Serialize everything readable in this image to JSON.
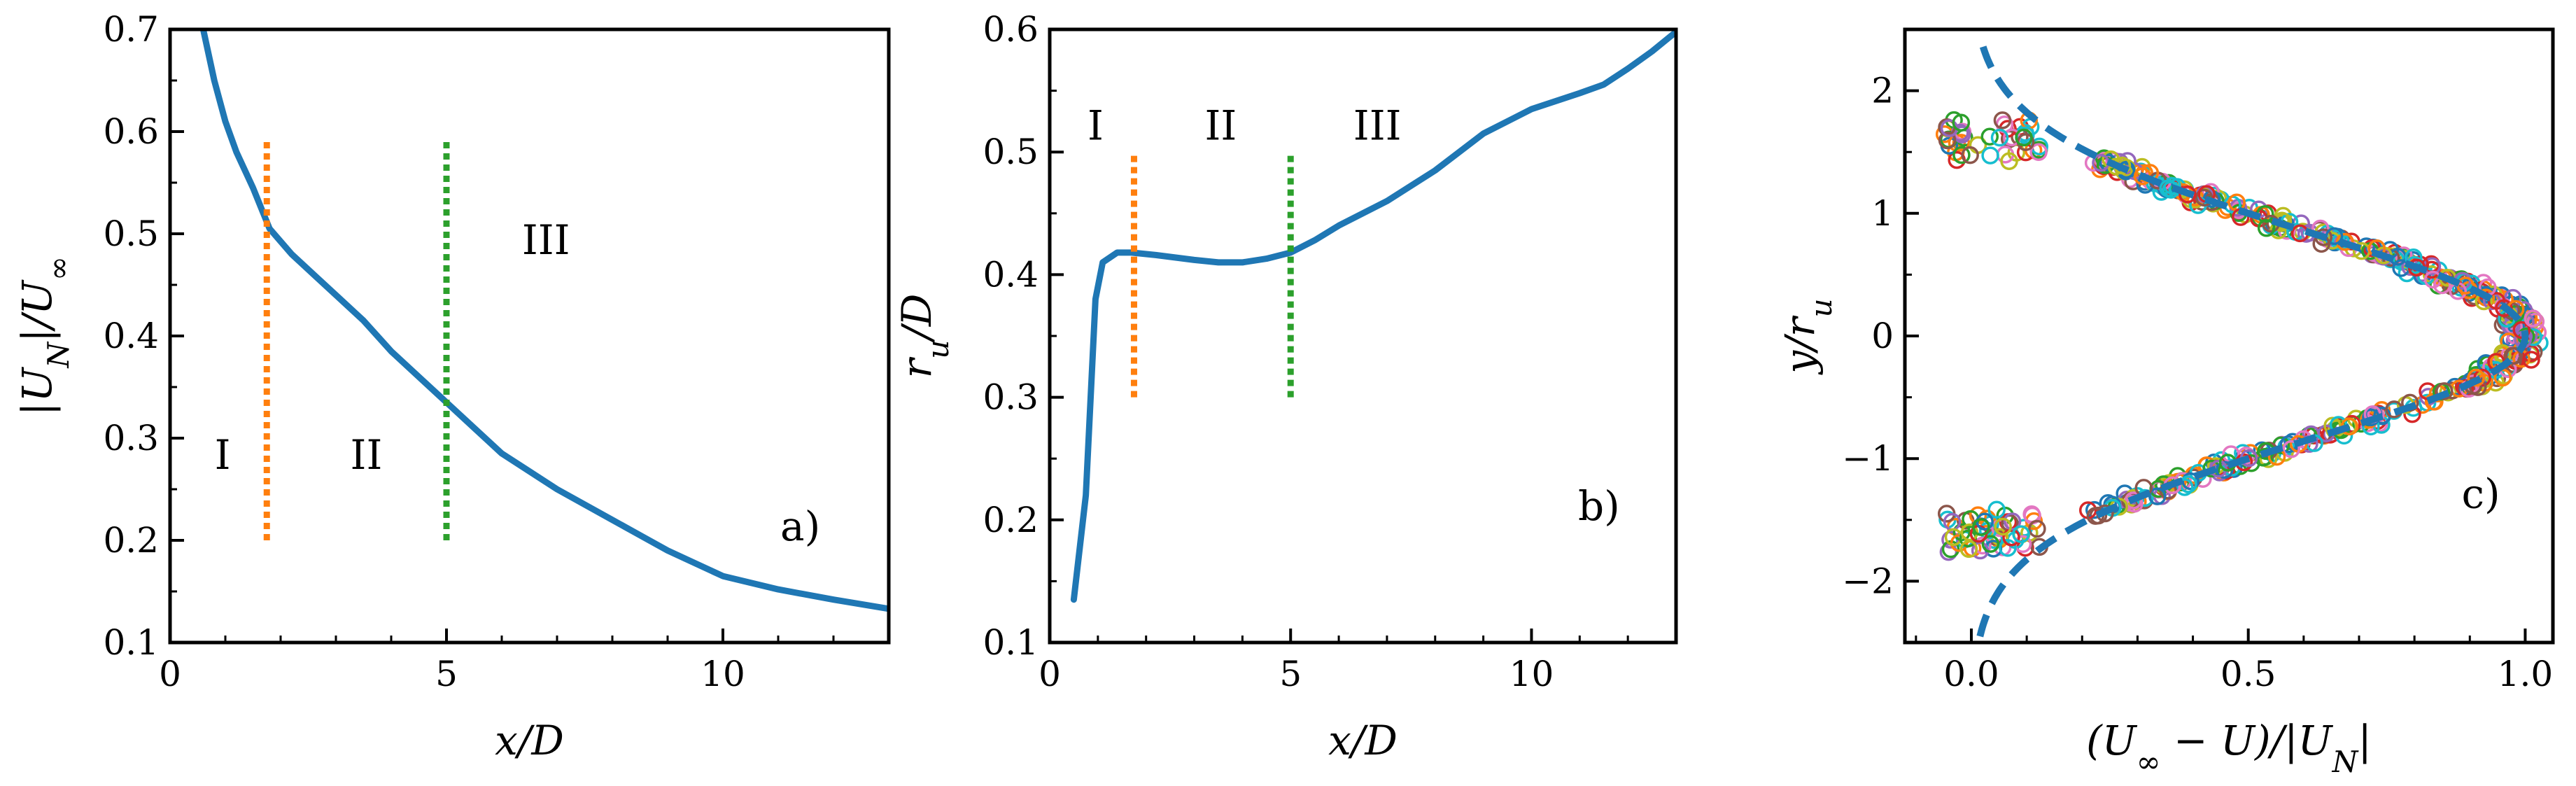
{
  "chart_data": [
    {
      "type": "line",
      "panel_label": "a)",
      "xlabel": "x/D",
      "ylabel": "|U_N|/U_∞",
      "xlim": [
        0,
        13
      ],
      "ylim": [
        0.1,
        0.7
      ],
      "xticks": [
        0,
        5,
        10
      ],
      "xtick_labels": [
        "0",
        "5",
        "10"
      ],
      "yticks": [
        0.1,
        0.2,
        0.3,
        0.4,
        0.5,
        0.6,
        0.7
      ],
      "ytick_labels": [
        "0.1",
        "0.2",
        "0.3",
        "0.4",
        "0.5",
        "0.6",
        "0.7"
      ],
      "series": [
        {
          "color": "#1f77b4",
          "x": [
            0.6,
            0.8,
            1.0,
            1.2,
            1.5,
            1.8,
            2.2,
            2.6,
            3.0,
            3.5,
            4.0,
            4.5,
            5.0,
            5.5,
            6.0,
            7.0,
            8.0,
            9.0,
            10.0,
            11.0,
            12.0,
            13.0
          ],
          "y": [
            0.7,
            0.65,
            0.61,
            0.58,
            0.545,
            0.505,
            0.48,
            0.46,
            0.44,
            0.415,
            0.385,
            0.36,
            0.335,
            0.31,
            0.285,
            0.25,
            0.22,
            0.19,
            0.165,
            0.152,
            0.142,
            0.133
          ]
        }
      ],
      "vlines": [
        {
          "x": 1.75,
          "ymin": 0.2,
          "ymax": 0.59,
          "color": "#ff7f0e",
          "style": "dotted"
        },
        {
          "x": 5.0,
          "ymin": 0.2,
          "ymax": 0.59,
          "color": "#2ca02c",
          "style": "dotted"
        }
      ],
      "regions": [
        {
          "label": "I",
          "x": 0.95,
          "y": 0.27
        },
        {
          "label": "II",
          "x": 3.55,
          "y": 0.27
        },
        {
          "label": "III",
          "x": 6.8,
          "y": 0.48
        }
      ],
      "panel_label_pos": {
        "x": 11.4,
        "y": 0.2
      }
    },
    {
      "type": "line",
      "panel_label": "b)",
      "xlabel": "x/D",
      "ylabel": "r_u/D",
      "xlim": [
        0,
        13
      ],
      "ylim": [
        0.1,
        0.6
      ],
      "xticks": [
        0,
        5,
        10
      ],
      "xtick_labels": [
        "0",
        "5",
        "10"
      ],
      "yticks": [
        0.1,
        0.2,
        0.3,
        0.4,
        0.5,
        0.6
      ],
      "ytick_labels": [
        "0.1",
        "0.2",
        "0.3",
        "0.4",
        "0.5",
        "0.6"
      ],
      "series": [
        {
          "color": "#1f77b4",
          "x": [
            0.5,
            0.75,
            0.95,
            1.1,
            1.4,
            1.7,
            2.2,
            3.0,
            3.5,
            4.0,
            4.5,
            5.0,
            5.5,
            6.0,
            7.0,
            8.0,
            9.0,
            10.0,
            11.0,
            11.5,
            12.0,
            12.5,
            13.0
          ],
          "y": [
            0.135,
            0.22,
            0.38,
            0.41,
            0.418,
            0.418,
            0.416,
            0.412,
            0.41,
            0.41,
            0.413,
            0.418,
            0.428,
            0.44,
            0.46,
            0.485,
            0.515,
            0.535,
            0.548,
            0.555,
            0.568,
            0.582,
            0.598
          ]
        }
      ],
      "vlines": [
        {
          "x": 1.75,
          "ymin": 0.3,
          "ymax": 0.5,
          "color": "#ff7f0e",
          "style": "dotted"
        },
        {
          "x": 5.0,
          "ymin": 0.3,
          "ymax": 0.5,
          "color": "#2ca02c",
          "style": "dotted"
        }
      ],
      "regions": [
        {
          "label": "I",
          "x": 0.95,
          "y": 0.51
        },
        {
          "label": "II",
          "x": 3.55,
          "y": 0.51
        },
        {
          "label": "III",
          "x": 6.8,
          "y": 0.51
        }
      ],
      "panel_label_pos": {
        "x": 11.4,
        "y": 0.2
      }
    },
    {
      "type": "scatter",
      "panel_label": "c)",
      "xlabel": "(U_∞ − U)/|U_N|",
      "ylabel": "y/r_u",
      "xlim": [
        -0.12,
        1.05
      ],
      "ylim": [
        -2.5,
        2.5
      ],
      "xticks": [
        0.0,
        0.5,
        1.0
      ],
      "xtick_labels": [
        "0.0",
        "0.5",
        "1.0"
      ],
      "yticks": [
        -2,
        -1,
        0,
        1,
        2
      ],
      "ytick_labels": [
        "−2",
        "−1",
        "0",
        "1",
        "2"
      ],
      "reference_curve": {
        "style": "dashed",
        "color": "#1f77b4",
        "description_formula": "exp(-ln2 * eta^2)",
        "y_range": [
          -2.45,
          2.4
        ]
      },
      "marker_colors": [
        "#1f77b4",
        "#ff7f0e",
        "#2ca02c",
        "#d62728",
        "#9467bd",
        "#8c564b",
        "#e377c2",
        "#bcbd22",
        "#17becf"
      ],
      "marker": "open-circle",
      "panel_label_pos": {
        "x": 0.92,
        "y": -1.4
      }
    }
  ]
}
